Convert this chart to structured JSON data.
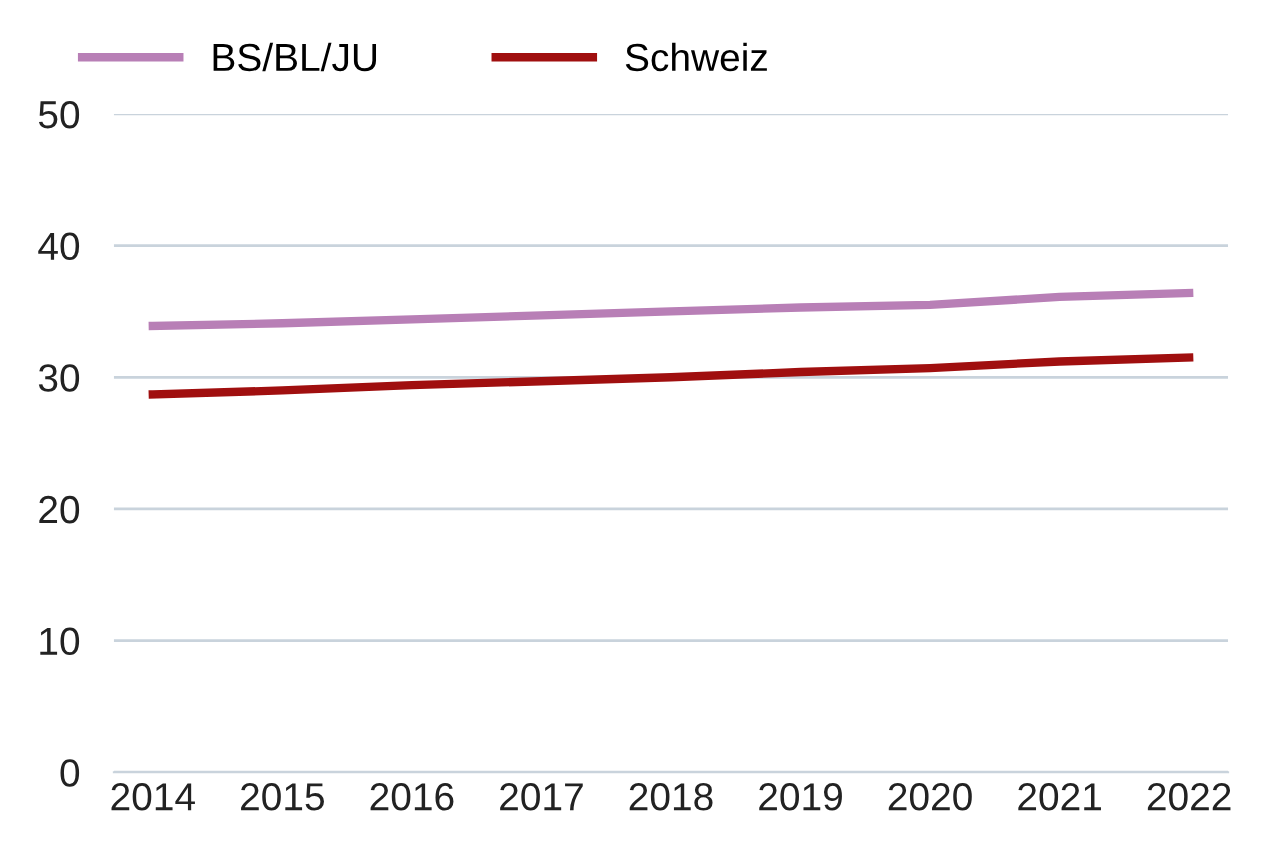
{
  "chart_data": {
    "type": "line",
    "categories": [
      "2014",
      "2015",
      "2016",
      "2017",
      "2018",
      "2019",
      "2020",
      "2021",
      "2022"
    ],
    "series": [
      {
        "name": "BS/BL/JU",
        "color": "#b87fb6",
        "values": [
          33.9,
          34.1,
          34.4,
          34.7,
          35.0,
          35.3,
          35.5,
          36.1,
          36.4
        ]
      },
      {
        "name": "Schweiz",
        "color": "#a00f0f",
        "values": [
          28.7,
          29.0,
          29.4,
          29.7,
          30.0,
          30.4,
          30.7,
          31.2,
          31.5
        ]
      }
    ],
    "ylim": [
      0,
      50
    ],
    "yticks": [
      0,
      10,
      20,
      30,
      40,
      50
    ],
    "grid": "y",
    "legend": "top left",
    "marker": "none",
    "line_style": "solid"
  }
}
